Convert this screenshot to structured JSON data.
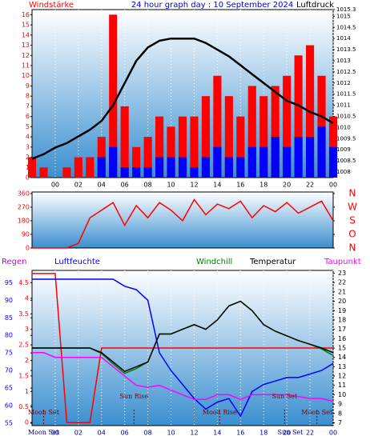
{
  "chart_data": [
    {
      "type": "bar",
      "title": "24 hour graph day : 10 September 2024",
      "y_label": "Windstärke",
      "y2_label": "Luftdruck",
      "x": [
        -2,
        -1,
        0,
        1,
        2,
        3,
        4,
        5,
        6,
        7,
        8,
        9,
        10,
        11,
        12,
        13,
        14,
        15,
        16,
        17,
        18,
        19,
        20,
        21,
        22,
        23,
        24
      ],
      "xlim": [
        -2,
        24
      ],
      "xticks": [
        {
          "value": 0,
          "label": "00"
        },
        {
          "value": 2,
          "label": "02"
        },
        {
          "value": 4,
          "label": "04"
        },
        {
          "value": 6,
          "label": "06"
        },
        {
          "value": 8,
          "label": "08"
        },
        10,
        12,
        14,
        16,
        18,
        20,
        22,
        {
          "value": 24,
          "label": "00"
        }
      ],
      "ylim": [
        0,
        16.5
      ],
      "yticks": [
        0,
        1,
        2,
        3,
        4,
        5,
        6,
        7,
        8,
        9,
        10,
        11,
        12,
        13,
        14,
        15,
        16
      ],
      "y2lim": [
        1007.75,
        1015.3
      ],
      "y2ticks": [
        1008,
        1008.5,
        1009,
        1009.5,
        1010,
        1010.5,
        1011,
        1011.5,
        1012,
        1012.5,
        1013,
        1013.5,
        1014,
        1014.5,
        1015,
        1015.3
      ],
      "grid": true,
      "series": [
        {
          "type": "bar",
          "color": "#ff0000",
          "values": [
            2,
            1,
            0,
            1,
            2,
            2,
            4,
            16,
            7,
            3,
            4,
            6,
            5,
            6,
            6,
            8,
            10,
            8,
            6,
            9,
            8,
            9,
            10,
            12,
            13,
            10,
            6
          ]
        },
        {
          "type": "bar",
          "color": "#0000ff",
          "values": [
            0,
            0,
            0,
            0,
            0,
            0,
            2,
            3,
            1,
            1,
            1,
            2,
            2,
            2,
            1,
            2,
            3,
            2,
            2,
            3,
            3,
            4,
            3,
            4,
            4,
            5,
            3
          ]
        },
        {
          "type": "line",
          "axis": "y2",
          "color": "#000000",
          "values": [
            1008.6,
            1008.8,
            1009.1,
            1009.3,
            1009.6,
            1009.9,
            1010.3,
            1011.0,
            1012.0,
            1013.0,
            1013.6,
            1013.9,
            1014.0,
            1014.0,
            1014.0,
            1013.8,
            1013.5,
            1013.2,
            1012.8,
            1012.4,
            1012.0,
            1011.6,
            1011.2,
            1011.0,
            1010.7,
            1010.5,
            1010.2
          ]
        }
      ]
    },
    {
      "type": "line",
      "x": [
        -2,
        -1,
        0,
        1,
        2,
        3,
        4,
        5,
        6,
        7,
        8,
        9,
        10,
        11,
        12,
        13,
        14,
        15,
        16,
        17,
        18,
        19,
        20,
        21,
        22,
        23,
        24
      ],
      "xlim": [
        -2,
        24
      ],
      "ylim": [
        0,
        370
      ],
      "yticks": [
        0,
        90,
        180,
        270,
        360
      ],
      "y2lim": [
        0,
        370
      ],
      "y2ticks": [
        {
          "value": 360,
          "label": "N"
        },
        {
          "value": 270,
          "label": "W"
        },
        {
          "value": 180,
          "label": "S"
        },
        {
          "value": 90,
          "label": "O"
        },
        {
          "value": 0,
          "label": "N"
        }
      ],
      "series": [
        {
          "type": "line",
          "color": "#ff0000",
          "values": [
            0,
            0,
            0,
            0,
            30,
            200,
            250,
            300,
            150,
            280,
            200,
            300,
            250,
            180,
            320,
            220,
            290,
            260,
            310,
            200,
            280,
            240,
            300,
            230,
            270,
            310,
            180
          ]
        }
      ]
    },
    {
      "type": "line",
      "x": [
        -2,
        -1,
        0,
        1,
        2,
        3,
        4,
        5,
        6,
        7,
        8,
        9,
        10,
        11,
        12,
        13,
        14,
        15,
        16,
        17,
        18,
        19,
        20,
        21,
        22,
        23,
        24
      ],
      "xlim": [
        -2,
        24
      ],
      "xticks": [
        {
          "value": 0,
          "label": "00"
        },
        {
          "value": 2,
          "label": "02"
        },
        {
          "value": 4,
          "label": "04"
        },
        {
          "value": 6,
          "label": "06"
        },
        {
          "value": 8,
          "label": "08"
        },
        10,
        12,
        14,
        16,
        18,
        20,
        22,
        {
          "value": 24,
          "label": "00"
        }
      ],
      "grid": true,
      "ylim": [
        54.3,
        98.5
      ],
      "yticks": [
        55,
        60,
        65,
        70,
        75,
        80,
        85,
        90,
        95
      ],
      "y2lim": [
        6.7,
        23.3
      ],
      "y2ticks": [
        7,
        8,
        9,
        10,
        11,
        12,
        13,
        14,
        15,
        16,
        17,
        18,
        19,
        20,
        21,
        22,
        23
      ],
      "y3lim": [
        -0.1,
        4.9
      ],
      "y3ticks": [
        0,
        0.5,
        1,
        1.5,
        2,
        2.5,
        3,
        3.5,
        4,
        4.5
      ],
      "series": [
        {
          "name": "Regen",
          "name_color": "#cc00cc",
          "axis": "y3",
          "color": "#ff0000",
          "values": [
            4.8,
            4.8,
            4.8,
            0,
            0,
            0,
            2.4,
            2.4,
            2.4,
            2.4,
            2.4,
            2.4,
            2.4,
            2.4,
            2.4,
            2.4,
            2.4,
            2.4,
            2.4,
            2.4,
            2.4,
            2.4,
            2.4,
            2.4,
            2.4,
            2.4,
            2.4
          ]
        },
        {
          "name": "Luftfeuchte",
          "axis": "y",
          "color": "#0000ff",
          "values": [
            96,
            96,
            96,
            96,
            96,
            96,
            96,
            96,
            94,
            93,
            90,
            75,
            70,
            66,
            62,
            59,
            61,
            62,
            57,
            64,
            66,
            67,
            68,
            68,
            69,
            70,
            72
          ]
        },
        {
          "name": "Windchill",
          "axis": "y2",
          "color": "#008000",
          "values": [
            15,
            15,
            15,
            15,
            15,
            15,
            14.4,
            13.3,
            12.3,
            12.8,
            13.5,
            16.5,
            16.5,
            17,
            17.5,
            17,
            18,
            19.5,
            20,
            19,
            17.5,
            16.8,
            16.3,
            15.8,
            15.4,
            14.9,
            14.2
          ]
        },
        {
          "name": "Temperatur",
          "axis": "y2",
          "color": "#000000",
          "values": [
            15,
            15,
            15,
            15,
            15,
            15,
            14.5,
            13.5,
            12.5,
            13,
            13.5,
            16.5,
            16.5,
            17,
            17.5,
            17,
            18,
            19.5,
            20,
            19,
            17.5,
            16.8,
            16.3,
            15.8,
            15.4,
            15,
            14.5
          ]
        },
        {
          "name": "Taupunkt",
          "axis": "y2",
          "color": "#ff00ff",
          "values": [
            14.5,
            14.5,
            14,
            14,
            14,
            14,
            14,
            13,
            12,
            11,
            10.8,
            11,
            10.5,
            10,
            9.5,
            9.5,
            10,
            10,
            9.5,
            10,
            10,
            10,
            10,
            9.8,
            9.6,
            9.6,
            9.3
          ]
        }
      ],
      "annotations": [
        {
          "text": "Moon Set",
          "x": -1
        },
        {
          "text": "Sun Rise",
          "x": 6.8
        },
        {
          "text": "Moon Rise",
          "x": 14.2
        },
        {
          "text": "Sun Set",
          "x": 19.8
        },
        {
          "text": "Moon Set",
          "x": 22.6
        }
      ],
      "bottom_annotations": [
        {
          "text": "Moon Set",
          "x": -1
        },
        {
          "text": "Sun Set",
          "x": 20.3
        }
      ]
    }
  ]
}
